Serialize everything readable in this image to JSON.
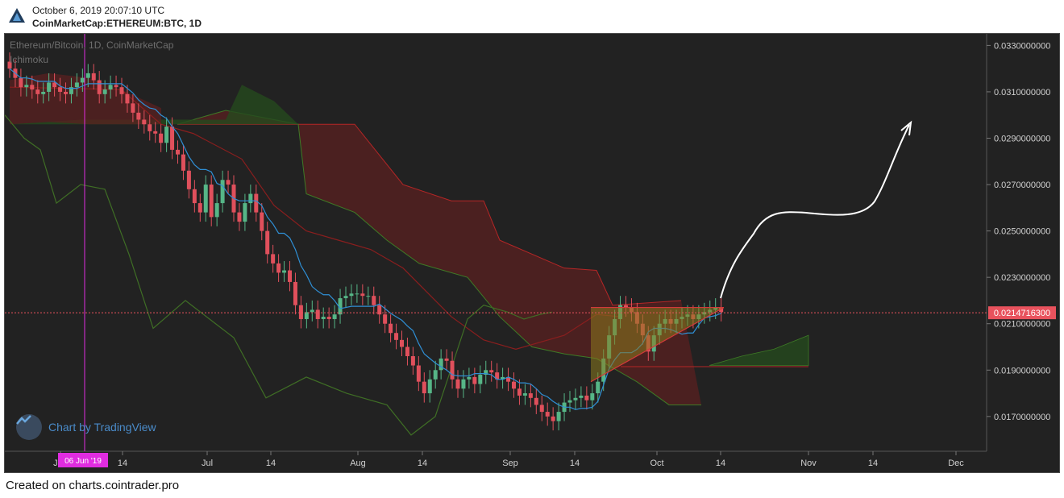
{
  "header": {
    "timestamp": "October 6, 2019 20:07:10 UTC",
    "symbol": "CoinMarketCap:ETHEREUM:BTC, 1D"
  },
  "legend": {
    "title": "Ethereum/Bitcoin, 1D, CoinMarketCap",
    "indicator": "Ichimoku"
  },
  "watermark": {
    "text": "Chart by TradingView"
  },
  "footer": {
    "text": "Created on charts.cointrader.pro"
  },
  "colors": {
    "background": "#222222",
    "up": "#56b687",
    "down": "#e0505c",
    "tenkan": "#2f8fd5",
    "kijun": "#8a1e1e",
    "chikou": "#3f6e25",
    "cloud_bear": "#5a2020",
    "cloud_bull": "#254a1e",
    "crosshair": "#e02ce0",
    "price_tag": "#e8525d",
    "triangle": "#8c7a1e"
  },
  "chart_data": {
    "type": "candlestick",
    "title": "Ethereum/Bitcoin, 1D, CoinMarketCap",
    "y_axis": {
      "ticks": [
        "0.0330000000",
        "0.0310000000",
        "0.0290000000",
        "0.0270000000",
        "0.0250000000",
        "0.0230000000",
        "0.0210000000",
        "0.0190000000",
        "0.0170000000"
      ],
      "min": 0.0155,
      "max": 0.0335
    },
    "x_axis": {
      "ticks": [
        "Jun",
        "14",
        "Jul",
        "14",
        "Aug",
        "14",
        "Sep",
        "14",
        "Oct",
        "14",
        "Nov",
        "14",
        "Dec"
      ]
    },
    "last_price": "0.0214716300",
    "crosshair_label": "06 Jun '19",
    "candles_close": [
      0.032,
      0.0316,
      0.0312,
      0.0313,
      0.0311,
      0.0309,
      0.031,
      0.0314,
      0.0312,
      0.031,
      0.0309,
      0.0312,
      0.0314,
      0.0316,
      0.0318,
      0.0315,
      0.0309,
      0.0311,
      0.0313,
      0.0312,
      0.0309,
      0.0305,
      0.0301,
      0.0298,
      0.0296,
      0.0293,
      0.0292,
      0.0288,
      0.0295,
      0.0285,
      0.0283,
      0.0276,
      0.0268,
      0.0262,
      0.0258,
      0.027,
      0.0256,
      0.0262,
      0.0272,
      0.027,
      0.0258,
      0.0254,
      0.0262,
      0.0266,
      0.0258,
      0.025,
      0.024,
      0.0236,
      0.0232,
      0.0233,
      0.0228,
      0.0218,
      0.0212,
      0.0215,
      0.0216,
      0.0212,
      0.0213,
      0.0212,
      0.0214,
      0.0221,
      0.0222,
      0.0223,
      0.0223,
      0.0222,
      0.0222,
      0.0218,
      0.0214,
      0.021,
      0.0206,
      0.0203,
      0.02,
      0.0196,
      0.0192,
      0.0185,
      0.018,
      0.0186,
      0.019,
      0.0195,
      0.0194,
      0.0186,
      0.0182,
      0.0186,
      0.0187,
      0.0184,
      0.0188,
      0.019,
      0.0189,
      0.0186,
      0.0187,
      0.0185,
      0.0182,
      0.0179,
      0.018,
      0.0178,
      0.0175,
      0.0172,
      0.017,
      0.0168,
      0.0172,
      0.0176,
      0.0177,
      0.0178,
      0.0179,
      0.0177,
      0.018,
      0.0185,
      0.0195,
      0.0205,
      0.0212,
      0.0218,
      0.0217,
      0.0215,
      0.021,
      0.0205,
      0.0198,
      0.0205,
      0.021,
      0.0212,
      0.021,
      0.0212,
      0.0213,
      0.0214,
      0.0212,
      0.0214,
      0.0215,
      0.0216,
      0.0217,
      0.0215
    ],
    "resistance_line": 0.0217,
    "projection": "up"
  }
}
